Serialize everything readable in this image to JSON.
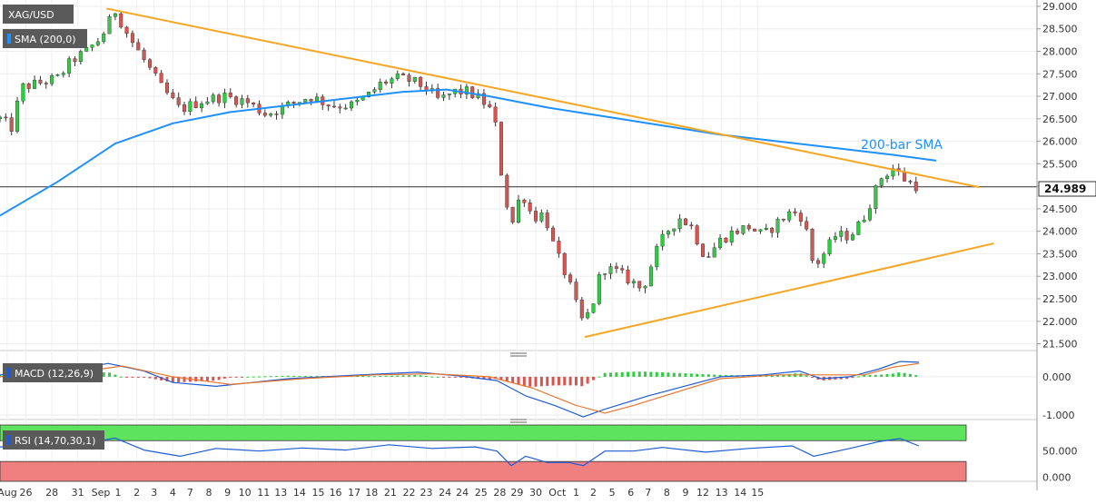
{
  "symbol": "XAG/USD",
  "indicator_label": "SMA (200,0)",
  "price_label": "24.989",
  "annotation": "200-bar SMA",
  "macd_label": "MACD (12,26,9)",
  "rsi_label": "RSI (14,70,30,1)",
  "colors": {
    "bull": "#2ecc40",
    "bear": "#d9534f",
    "trendline": "#f5a623",
    "sma": "#1e90ff",
    "macd_line": "#1e5bd6",
    "signal_line": "#e8742c",
    "rsi_line": "#1e5bd6",
    "overbought": "#5ee35e",
    "oversold": "#f08080"
  },
  "chart_data": {
    "type": "candlestick",
    "main": {
      "y_ticks": [
        "29.000",
        "28.500",
        "28.000",
        "27.500",
        "27.000",
        "26.500",
        "26.000",
        "25.500",
        "25.000",
        "24.500",
        "24.000",
        "23.500",
        "23.000",
        "22.500",
        "22.000",
        "21.500"
      ],
      "ylim": [
        21.35,
        29.1
      ],
      "last_price": 24.989,
      "sma_200": [
        {
          "i": 0,
          "y": 24.35
        },
        {
          "i": 40,
          "y": 25.1
        },
        {
          "i": 80,
          "y": 25.95
        },
        {
          "i": 120,
          "y": 26.4
        },
        {
          "i": 160,
          "y": 26.65
        },
        {
          "i": 200,
          "y": 26.8
        },
        {
          "i": 240,
          "y": 26.95
        },
        {
          "i": 280,
          "y": 27.1
        },
        {
          "i": 310,
          "y": 27.15
        },
        {
          "i": 340,
          "y": 27.0
        },
        {
          "i": 380,
          "y": 26.75
        },
        {
          "i": 420,
          "y": 26.55
        },
        {
          "i": 460,
          "y": 26.35
        },
        {
          "i": 500,
          "y": 26.15
        },
        {
          "i": 540,
          "y": 26.0
        },
        {
          "i": 580,
          "y": 25.85
        },
        {
          "i": 620,
          "y": 25.7
        },
        {
          "i": 650,
          "y": 25.57
        }
      ],
      "trendlines": [
        {
          "name": "resistance",
          "from": {
            "i": 74,
            "y": 28.95
          },
          "to": {
            "i": 680,
            "y": 24.98
          }
        },
        {
          "name": "support",
          "from": {
            "i": 406,
            "y": 21.65
          },
          "to": {
            "i": 690,
            "y": 23.73
          }
        }
      ],
      "close_path": [
        {
          "i": 0,
          "y": 26.5
        },
        {
          "i": 8,
          "y": 26.3
        },
        {
          "i": 15,
          "y": 27.2
        },
        {
          "i": 28,
          "y": 27.3
        },
        {
          "i": 40,
          "y": 27.4
        },
        {
          "i": 50,
          "y": 27.8
        },
        {
          "i": 60,
          "y": 28.0
        },
        {
          "i": 70,
          "y": 28.3
        },
        {
          "i": 80,
          "y": 28.9
        },
        {
          "i": 90,
          "y": 28.3
        },
        {
          "i": 100,
          "y": 27.8
        },
        {
          "i": 112,
          "y": 27.2
        },
        {
          "i": 125,
          "y": 26.7
        },
        {
          "i": 140,
          "y": 26.9
        },
        {
          "i": 155,
          "y": 27.0
        },
        {
          "i": 170,
          "y": 26.9
        },
        {
          "i": 185,
          "y": 26.6
        },
        {
          "i": 200,
          "y": 26.8
        },
        {
          "i": 215,
          "y": 27.0
        },
        {
          "i": 230,
          "y": 26.8
        },
        {
          "i": 245,
          "y": 26.8
        },
        {
          "i": 255,
          "y": 27.0
        },
        {
          "i": 265,
          "y": 27.3
        },
        {
          "i": 275,
          "y": 27.4
        },
        {
          "i": 285,
          "y": 27.35
        },
        {
          "i": 295,
          "y": 27.2
        },
        {
          "i": 305,
          "y": 26.9
        },
        {
          "i": 315,
          "y": 27.1
        },
        {
          "i": 325,
          "y": 27.1
        },
        {
          "i": 335,
          "y": 26.9
        },
        {
          "i": 343,
          "y": 26.6
        },
        {
          "i": 350,
          "y": 24.8
        },
        {
          "i": 356,
          "y": 24.2
        },
        {
          "i": 362,
          "y": 24.9
        },
        {
          "i": 370,
          "y": 24.3
        },
        {
          "i": 378,
          "y": 24.4
        },
        {
          "i": 385,
          "y": 23.6
        },
        {
          "i": 392,
          "y": 23.1
        },
        {
          "i": 398,
          "y": 22.6
        },
        {
          "i": 403,
          "y": 22.0
        },
        {
          "i": 410,
          "y": 22.2
        },
        {
          "i": 418,
          "y": 23.2
        },
        {
          "i": 428,
          "y": 23.1
        },
        {
          "i": 438,
          "y": 22.9
        },
        {
          "i": 446,
          "y": 22.7
        },
        {
          "i": 455,
          "y": 23.5
        },
        {
          "i": 463,
          "y": 24.0
        },
        {
          "i": 472,
          "y": 24.3
        },
        {
          "i": 480,
          "y": 24.1
        },
        {
          "i": 490,
          "y": 23.4
        },
        {
          "i": 500,
          "y": 23.8
        },
        {
          "i": 510,
          "y": 24.0
        },
        {
          "i": 520,
          "y": 24.1
        },
        {
          "i": 530,
          "y": 23.9
        },
        {
          "i": 540,
          "y": 24.2
        },
        {
          "i": 550,
          "y": 24.45
        },
        {
          "i": 558,
          "y": 24.3
        },
        {
          "i": 565,
          "y": 23.2
        },
        {
          "i": 572,
          "y": 23.5
        },
        {
          "i": 580,
          "y": 23.9
        },
        {
          "i": 590,
          "y": 23.9
        },
        {
          "i": 598,
          "y": 24.2
        },
        {
          "i": 605,
          "y": 24.7
        },
        {
          "i": 612,
          "y": 25.2
        },
        {
          "i": 620,
          "y": 25.4
        },
        {
          "i": 630,
          "y": 25.1
        },
        {
          "i": 638,
          "y": 24.99
        }
      ]
    },
    "macd": {
      "y_ticks": [
        "0.000",
        "-1.000"
      ],
      "ylim": [
        -1.12,
        0.45
      ],
      "macd_path": [
        {
          "i": 0,
          "y": 0.05
        },
        {
          "i": 40,
          "y": 0.1
        },
        {
          "i": 75,
          "y": 0.35
        },
        {
          "i": 100,
          "y": 0.15
        },
        {
          "i": 120,
          "y": -0.15
        },
        {
          "i": 150,
          "y": -0.25
        },
        {
          "i": 200,
          "y": -0.05
        },
        {
          "i": 250,
          "y": 0.05
        },
        {
          "i": 290,
          "y": 0.12
        },
        {
          "i": 320,
          "y": 0.02
        },
        {
          "i": 345,
          "y": -0.1
        },
        {
          "i": 365,
          "y": -0.5
        },
        {
          "i": 385,
          "y": -0.75
        },
        {
          "i": 405,
          "y": -1.05
        },
        {
          "i": 420,
          "y": -0.85
        },
        {
          "i": 450,
          "y": -0.5
        },
        {
          "i": 480,
          "y": -0.2
        },
        {
          "i": 500,
          "y": 0.0
        },
        {
          "i": 530,
          "y": 0.05
        },
        {
          "i": 555,
          "y": 0.15
        },
        {
          "i": 570,
          "y": -0.05
        },
        {
          "i": 590,
          "y": 0.0
        },
        {
          "i": 610,
          "y": 0.2
        },
        {
          "i": 625,
          "y": 0.4
        },
        {
          "i": 638,
          "y": 0.38
        }
      ],
      "signal_path": [
        {
          "i": 0,
          "y": 0.0
        },
        {
          "i": 50,
          "y": 0.1
        },
        {
          "i": 85,
          "y": 0.28
        },
        {
          "i": 120,
          "y": 0.0
        },
        {
          "i": 160,
          "y": -0.2
        },
        {
          "i": 210,
          "y": -0.05
        },
        {
          "i": 260,
          "y": 0.05
        },
        {
          "i": 300,
          "y": 0.08
        },
        {
          "i": 340,
          "y": 0.0
        },
        {
          "i": 370,
          "y": -0.3
        },
        {
          "i": 400,
          "y": -0.75
        },
        {
          "i": 420,
          "y": -0.95
        },
        {
          "i": 440,
          "y": -0.75
        },
        {
          "i": 470,
          "y": -0.4
        },
        {
          "i": 500,
          "y": -0.05
        },
        {
          "i": 540,
          "y": 0.05
        },
        {
          "i": 570,
          "y": 0.05
        },
        {
          "i": 600,
          "y": 0.05
        },
        {
          "i": 620,
          "y": 0.25
        },
        {
          "i": 638,
          "y": 0.35
        }
      ]
    },
    "rsi": {
      "y_ticks": [
        "50.000",
        "0.000"
      ],
      "ylim": [
        -8,
        100
      ],
      "overbought": 70,
      "oversold": 30,
      "rsi_path": [
        {
          "i": 0,
          "y": 58
        },
        {
          "i": 20,
          "y": 60
        },
        {
          "i": 45,
          "y": 63
        },
        {
          "i": 70,
          "y": 70
        },
        {
          "i": 80,
          "y": 75
        },
        {
          "i": 100,
          "y": 52
        },
        {
          "i": 125,
          "y": 40
        },
        {
          "i": 150,
          "y": 55
        },
        {
          "i": 180,
          "y": 50
        },
        {
          "i": 210,
          "y": 56
        },
        {
          "i": 240,
          "y": 52
        },
        {
          "i": 270,
          "y": 62
        },
        {
          "i": 300,
          "y": 55
        },
        {
          "i": 330,
          "y": 58
        },
        {
          "i": 345,
          "y": 50
        },
        {
          "i": 355,
          "y": 22
        },
        {
          "i": 365,
          "y": 40
        },
        {
          "i": 380,
          "y": 28
        },
        {
          "i": 395,
          "y": 28
        },
        {
          "i": 405,
          "y": 22
        },
        {
          "i": 420,
          "y": 50
        },
        {
          "i": 440,
          "y": 50
        },
        {
          "i": 460,
          "y": 57
        },
        {
          "i": 490,
          "y": 48
        },
        {
          "i": 520,
          "y": 55
        },
        {
          "i": 550,
          "y": 60
        },
        {
          "i": 565,
          "y": 40
        },
        {
          "i": 590,
          "y": 55
        },
        {
          "i": 610,
          "y": 68
        },
        {
          "i": 625,
          "y": 74
        },
        {
          "i": 638,
          "y": 60
        }
      ]
    },
    "x_labels": [
      {
        "label": "Aug",
        "i": 5
      },
      {
        "label": "26",
        "i": 18
      },
      {
        "label": "28",
        "i": 36
      },
      {
        "label": "31",
        "i": 54
      },
      {
        "label": "Sep",
        "i": 70
      },
      {
        "label": "1",
        "i": 82
      },
      {
        "label": "2",
        "i": 95
      },
      {
        "label": "3",
        "i": 107
      },
      {
        "label": "4",
        "i": 120
      },
      {
        "label": "7",
        "i": 132
      },
      {
        "label": "8",
        "i": 145
      },
      {
        "label": "9",
        "i": 158
      },
      {
        "label": "10",
        "i": 170
      },
      {
        "label": "11",
        "i": 183
      },
      {
        "label": "13",
        "i": 195
      },
      {
        "label": "14",
        "i": 208
      },
      {
        "label": "15",
        "i": 221
      },
      {
        "label": "16",
        "i": 233
      },
      {
        "label": "17",
        "i": 246
      },
      {
        "label": "18",
        "i": 258
      },
      {
        "label": "21",
        "i": 271
      },
      {
        "label": "22",
        "i": 284
      },
      {
        "label": "23",
        "i": 296
      },
      {
        "label": "24",
        "i": 309
      },
      {
        "label": "24",
        "i": 321
      },
      {
        "label": "25",
        "i": 334
      },
      {
        "label": "28",
        "i": 347
      },
      {
        "label": "29",
        "i": 359
      },
      {
        "label": "30",
        "i": 372
      },
      {
        "label": "Oct",
        "i": 387
      },
      {
        "label": "1",
        "i": 400
      },
      {
        "label": "2",
        "i": 412
      },
      {
        "label": "5",
        "i": 425
      },
      {
        "label": "6",
        "i": 438
      },
      {
        "label": "7",
        "i": 450
      },
      {
        "label": "8",
        "i": 463
      },
      {
        "label": "9",
        "i": 476
      },
      {
        "label": "12",
        "i": 488
      },
      {
        "label": "13",
        "i": 501
      },
      {
        "label": "14",
        "i": 514
      },
      {
        "label": "15",
        "i": 526
      }
    ]
  }
}
